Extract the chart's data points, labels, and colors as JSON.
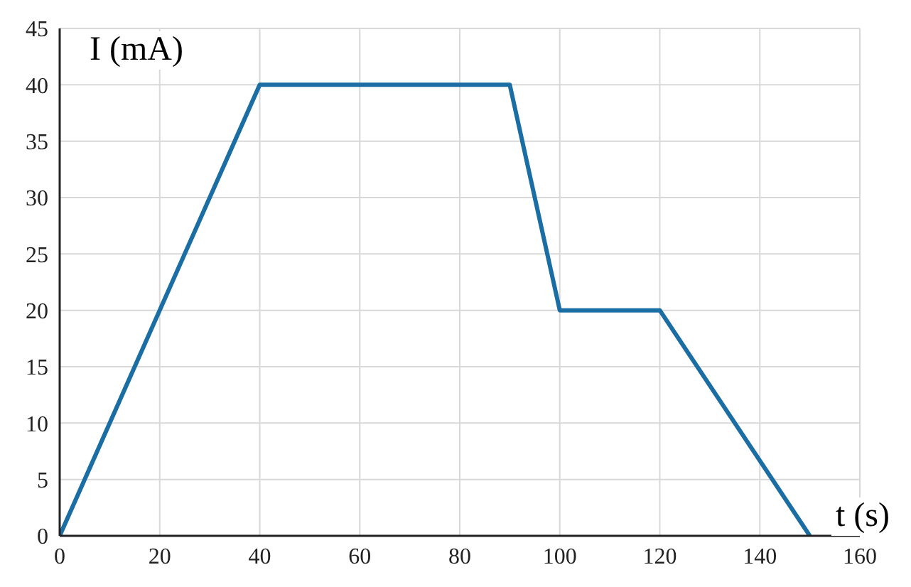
{
  "chart_data": {
    "type": "line",
    "xlabel": "t (s)",
    "ylabel": "I (mA)",
    "x": [
      0,
      40,
      90,
      100,
      120,
      150
    ],
    "series": [
      {
        "color": "#1b6ea3",
        "values": [
          0,
          40,
          40,
          20,
          20,
          0
        ]
      }
    ],
    "xlim": [
      0,
      160
    ],
    "xticks": [
      0,
      20,
      40,
      60,
      80,
      100,
      120,
      140,
      160
    ],
    "ylim": [
      0,
      45
    ],
    "yticks": [
      0,
      5,
      10,
      15,
      20,
      25,
      30,
      35,
      40,
      45
    ],
    "grid": true,
    "marker": "none",
    "line_style": "solid"
  }
}
